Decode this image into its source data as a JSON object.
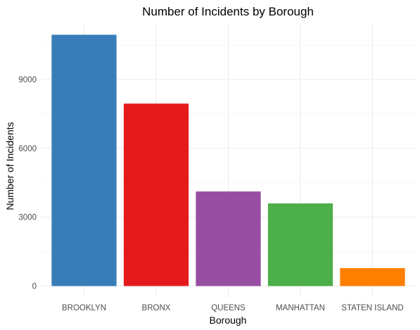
{
  "chart_data": {
    "type": "bar",
    "title": "Number of Incidents by Borough",
    "xlabel": "Borough",
    "ylabel": "Number of Incidents",
    "categories": [
      "BROOKLYN",
      "BRONX",
      "QUEENS",
      "MANHATTAN",
      "STATEN ISLAND"
    ],
    "values": [
      10950,
      7950,
      4120,
      3600,
      780
    ],
    "colors": [
      "#377EB8",
      "#E41A1C",
      "#984EA3",
      "#4DAF4A",
      "#FF7F00"
    ],
    "ylim": [
      0,
      11500
    ],
    "yticks": [
      0,
      3000,
      6000,
      9000
    ],
    "ytick_labels": [
      "0",
      "3000",
      "6000",
      "9000"
    ],
    "grid": true,
    "legend": "none"
  }
}
